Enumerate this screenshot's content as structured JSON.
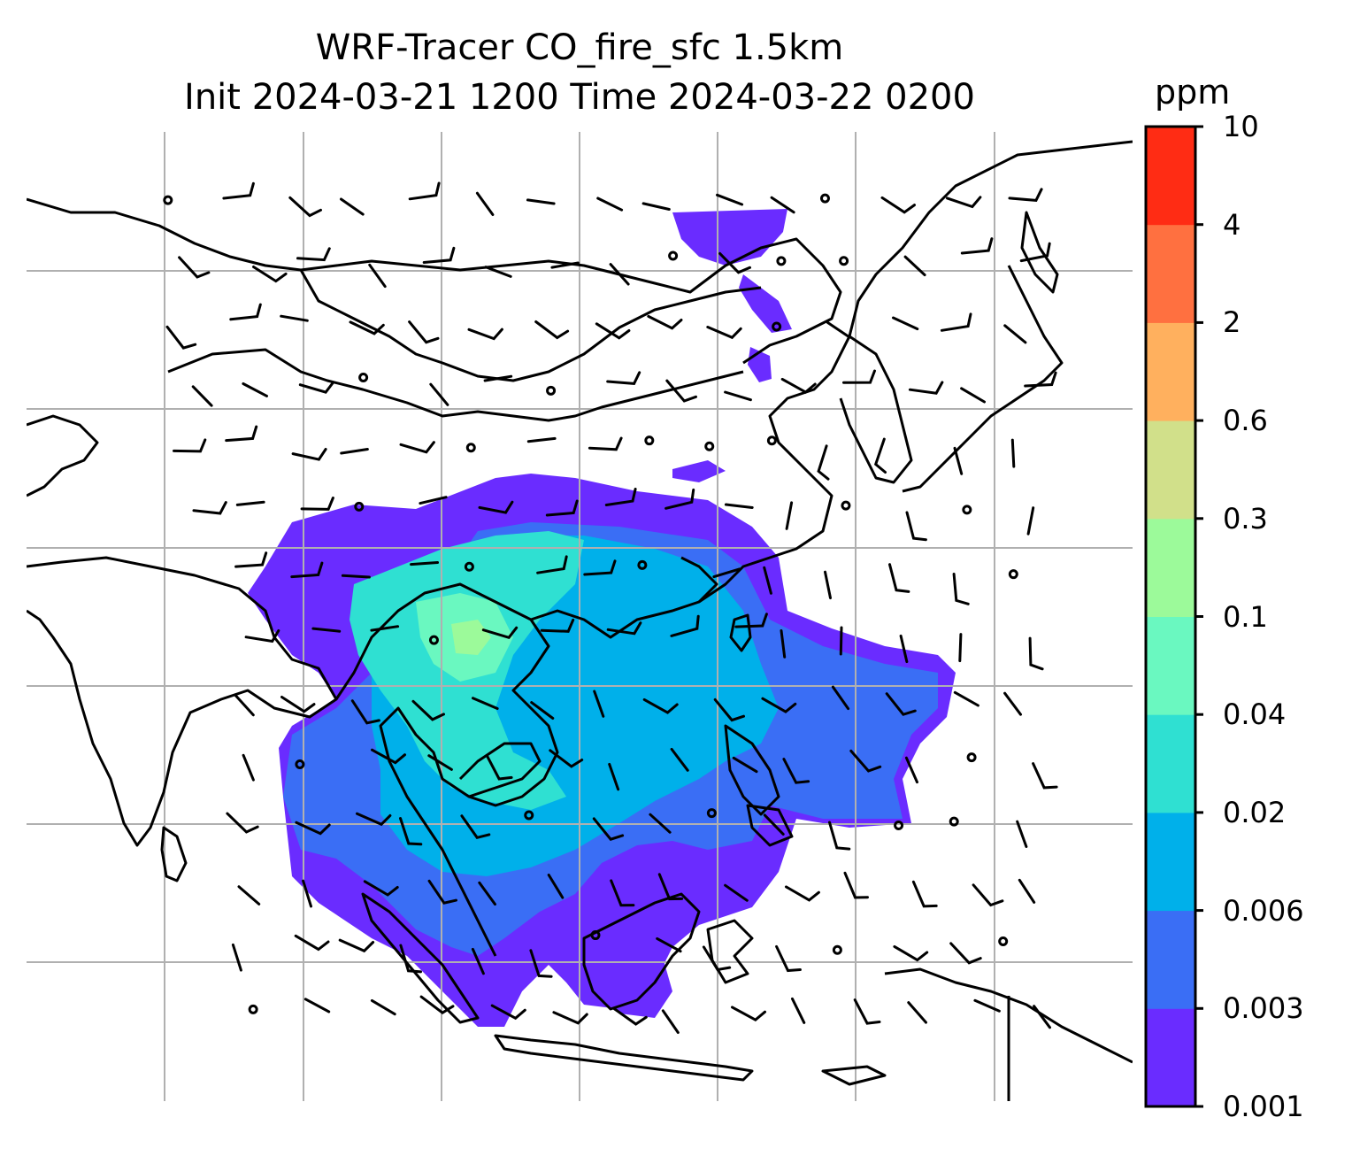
{
  "title": {
    "line1": "WRF-Tracer CO_fire_sfc 1.5km",
    "line2": "Init 2024-03-21 1200 Time 2024-03-22 0200"
  },
  "colorbar": {
    "unit": "ppm",
    "levels": [
      "0.001",
      "0.003",
      "0.006",
      "0.02",
      "0.04",
      "0.1",
      "0.3",
      "0.6",
      "2",
      "4",
      "10"
    ],
    "colors": [
      "#6a2cff",
      "#3a6ef5",
      "#00b0ea",
      "#2fe0d2",
      "#6af8c0",
      "#9cfa9a",
      "#d1e08a",
      "#ffb05e",
      "#ff7040",
      "#ff2c14"
    ]
  },
  "map": {
    "region": "South and Southeast Asia, China, Korea, Japan",
    "gridlines": true,
    "coastline_color": "#000000",
    "wind_barbs": true,
    "field": "CO_fire_sfc"
  }
}
